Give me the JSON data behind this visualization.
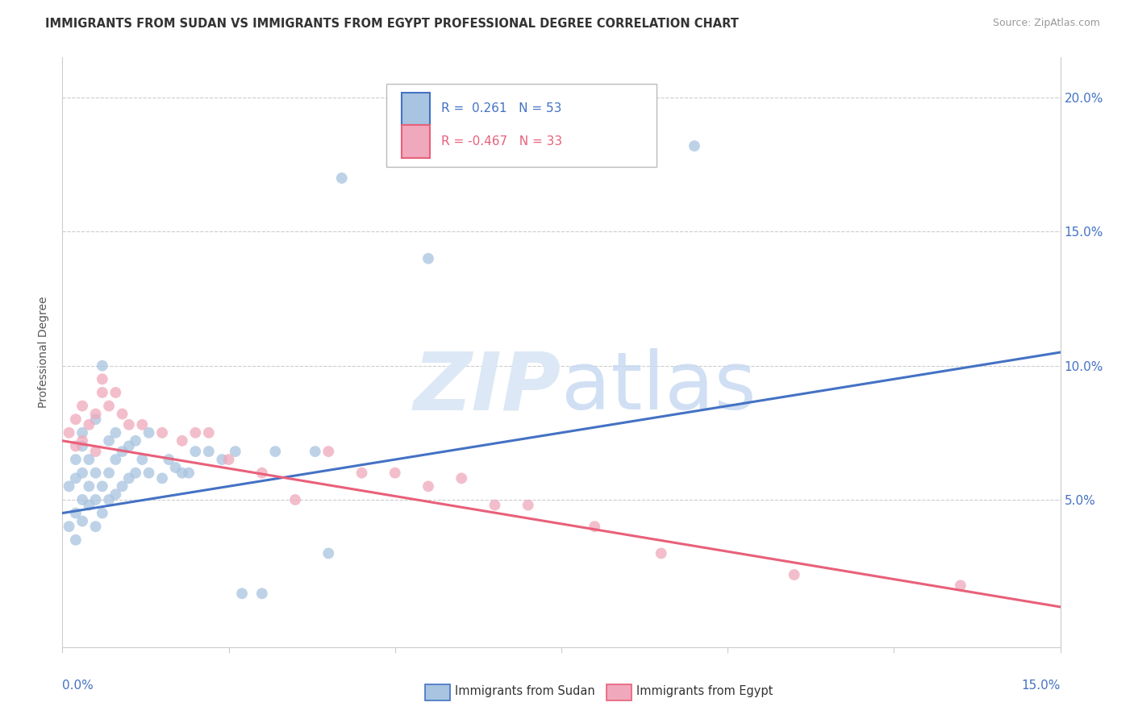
{
  "title": "IMMIGRANTS FROM SUDAN VS IMMIGRANTS FROM EGYPT PROFESSIONAL DEGREE CORRELATION CHART",
  "source": "Source: ZipAtlas.com",
  "ylabel": "Professional Degree",
  "xlim": [
    0.0,
    0.15
  ],
  "ylim": [
    -0.005,
    0.215
  ],
  "yticks": [
    0.05,
    0.1,
    0.15,
    0.2
  ],
  "ytick_labels": [
    "5.0%",
    "10.0%",
    "15.0%",
    "20.0%"
  ],
  "legend_r1": "R =  0.261   N = 53",
  "legend_r2": "R = -0.467   N = 33",
  "sudan_color": "#a8c4e0",
  "egypt_color": "#f0a8bc",
  "sudan_line_color": "#4472c4",
  "egypt_line_color": "#e8607a",
  "sudan_trend_x": [
    0.0,
    0.15
  ],
  "sudan_trend_y": [
    0.045,
    0.105
  ],
  "egypt_trend_x": [
    0.0,
    0.15
  ],
  "egypt_trend_y": [
    0.072,
    0.01
  ],
  "sudan_points_x": [
    0.001,
    0.001,
    0.002,
    0.002,
    0.002,
    0.002,
    0.003,
    0.003,
    0.003,
    0.003,
    0.003,
    0.004,
    0.004,
    0.004,
    0.005,
    0.005,
    0.005,
    0.005,
    0.006,
    0.006,
    0.006,
    0.007,
    0.007,
    0.007,
    0.008,
    0.008,
    0.008,
    0.009,
    0.009,
    0.01,
    0.01,
    0.011,
    0.011,
    0.012,
    0.013,
    0.013,
    0.015,
    0.016,
    0.017,
    0.018,
    0.019,
    0.02,
    0.022,
    0.024,
    0.026,
    0.027,
    0.03,
    0.032,
    0.038,
    0.04,
    0.042,
    0.055,
    0.095
  ],
  "sudan_points_y": [
    0.04,
    0.055,
    0.035,
    0.045,
    0.058,
    0.065,
    0.042,
    0.05,
    0.06,
    0.07,
    0.075,
    0.048,
    0.055,
    0.065,
    0.04,
    0.05,
    0.06,
    0.08,
    0.045,
    0.055,
    0.1,
    0.05,
    0.06,
    0.072,
    0.052,
    0.065,
    0.075,
    0.055,
    0.068,
    0.058,
    0.07,
    0.06,
    0.072,
    0.065,
    0.06,
    0.075,
    0.058,
    0.065,
    0.062,
    0.06,
    0.06,
    0.068,
    0.068,
    0.065,
    0.068,
    0.015,
    0.015,
    0.068,
    0.068,
    0.03,
    0.17,
    0.14,
    0.182
  ],
  "egypt_points_x": [
    0.001,
    0.002,
    0.002,
    0.003,
    0.003,
    0.004,
    0.005,
    0.005,
    0.006,
    0.006,
    0.007,
    0.008,
    0.009,
    0.01,
    0.012,
    0.015,
    0.018,
    0.02,
    0.022,
    0.025,
    0.03,
    0.035,
    0.04,
    0.045,
    0.05,
    0.055,
    0.06,
    0.065,
    0.07,
    0.08,
    0.09,
    0.11,
    0.135
  ],
  "egypt_points_y": [
    0.075,
    0.07,
    0.08,
    0.072,
    0.085,
    0.078,
    0.068,
    0.082,
    0.09,
    0.095,
    0.085,
    0.09,
    0.082,
    0.078,
    0.078,
    0.075,
    0.072,
    0.075,
    0.075,
    0.065,
    0.06,
    0.05,
    0.068,
    0.06,
    0.06,
    0.055,
    0.058,
    0.048,
    0.048,
    0.04,
    0.03,
    0.022,
    0.018
  ]
}
